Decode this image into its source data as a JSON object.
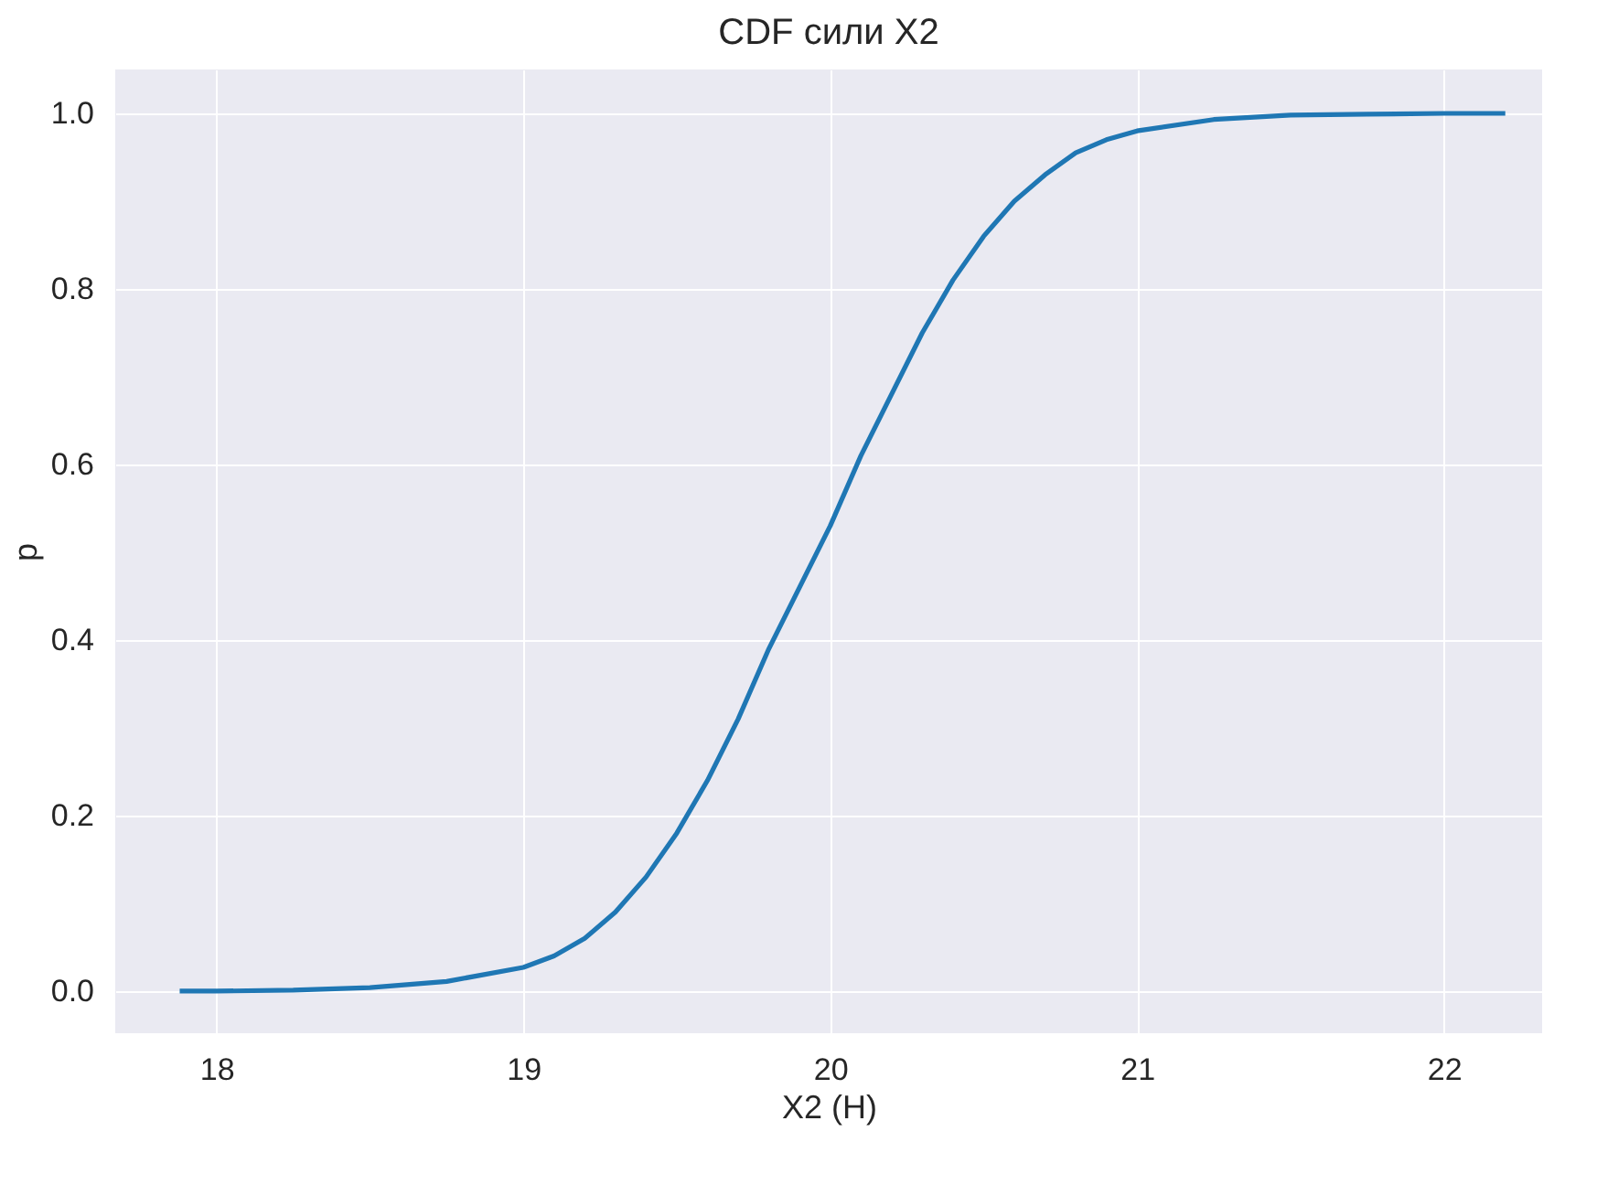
{
  "chart_data": {
    "type": "line",
    "title": "CDF сили X2",
    "xlabel": "X2 (Н)",
    "ylabel": "p",
    "xlim": [
      17.67,
      22.32
    ],
    "ylim": [
      -0.048,
      1.05
    ],
    "xticks": [
      18,
      19,
      20,
      21,
      22
    ],
    "yticks": [
      {
        "value": 0,
        "label": "0.0"
      },
      {
        "value": 0.2,
        "label": "0.2"
      },
      {
        "value": 0.4,
        "label": "0.4"
      },
      {
        "value": 0.6,
        "label": "0.6"
      },
      {
        "value": 0.8,
        "label": "0.8"
      },
      {
        "value": 1,
        "label": "1.0"
      }
    ],
    "grid": true,
    "marker": "none",
    "line_style": "solid",
    "series": [
      {
        "color": "#1f77b4",
        "x": [
          17.88,
          18.0,
          18.25,
          18.5,
          18.75,
          19.0,
          19.1,
          19.2,
          19.3,
          19.4,
          19.5,
          19.6,
          19.7,
          19.8,
          19.9,
          20.0,
          20.1,
          20.2,
          20.3,
          20.4,
          20.5,
          20.6,
          20.7,
          20.8,
          20.9,
          21.0,
          21.25,
          21.5,
          21.75,
          22.0,
          22.2
        ],
        "values": [
          0,
          0,
          0.001,
          0.004,
          0.011,
          0.027,
          0.04,
          0.06,
          0.09,
          0.13,
          0.18,
          0.24,
          0.31,
          0.39,
          0.46,
          0.53,
          0.61,
          0.68,
          0.75,
          0.81,
          0.86,
          0.9,
          0.93,
          0.955,
          0.97,
          0.98,
          0.993,
          0.998,
          0.999,
          1.0,
          1.0
        ]
      }
    ]
  }
}
